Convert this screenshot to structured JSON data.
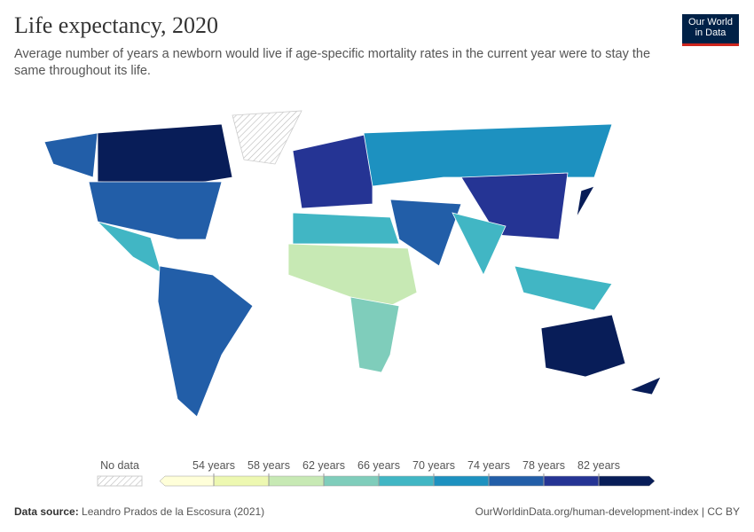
{
  "header": {
    "title": "Life expectancy, 2020",
    "subtitle": "Average number of years a newborn would live if age-specific mortality rates in the current year were to stay the same throughout its life.",
    "logo": [
      "Our World",
      "in Data"
    ]
  },
  "legend": {
    "no_data": "No data",
    "ticks": [
      {
        "value": 54,
        "label": "54 years"
      },
      {
        "value": 58,
        "label": "58 years"
      },
      {
        "value": 62,
        "label": "62 years"
      },
      {
        "value": 66,
        "label": "66 years"
      },
      {
        "value": 70,
        "label": "70 years"
      },
      {
        "value": 74,
        "label": "74 years"
      },
      {
        "value": 78,
        "label": "78 years"
      },
      {
        "value": 82,
        "label": "82 years"
      }
    ],
    "colors": [
      "#ffffd9",
      "#edf8b1",
      "#c7e9b4",
      "#7fcdbb",
      "#41b6c4",
      "#1d91c0",
      "#225ea8",
      "#253494",
      "#081d58"
    ]
  },
  "footer": {
    "source_label": "Data source:",
    "source": "Leandro Prados de la Escosura (2021)",
    "link": "OurWorldinData.org/human-development-index | CC BY"
  }
}
